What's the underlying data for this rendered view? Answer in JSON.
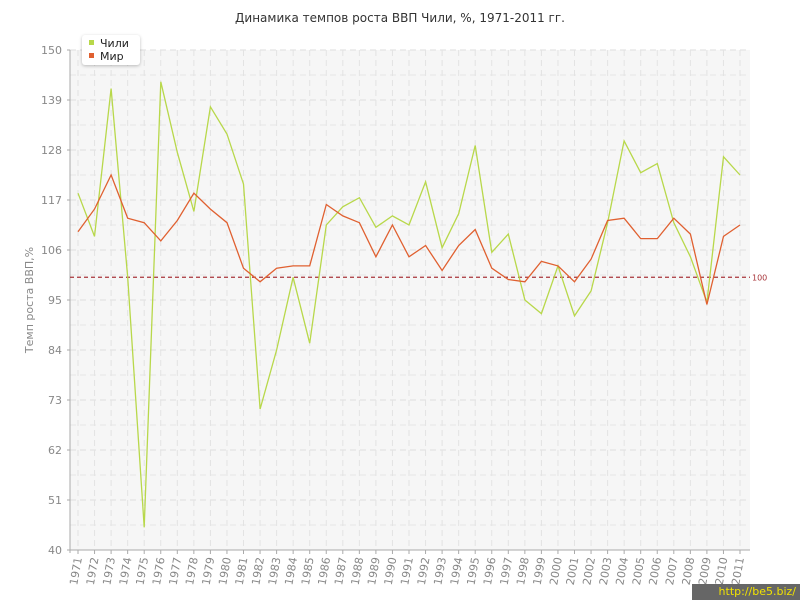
{
  "chart_data": {
    "type": "line",
    "title": "Динамика темпов роста ВВП Чили, %, 1971-2011 гг.",
    "xlabel": "",
    "ylabel": "Темп роста ВВП,%",
    "ylim": [
      40,
      150
    ],
    "yticks": [
      40,
      51,
      62,
      73,
      84,
      95,
      106,
      117,
      128,
      139,
      150
    ],
    "grid": true,
    "legend_position": "top-left",
    "reference_line": {
      "value": 100,
      "label": "100",
      "color": "#a8353a"
    },
    "x": [
      "1971",
      "1972",
      "1973",
      "1974",
      "1975",
      "1976",
      "1977",
      "1978",
      "1979",
      "1980",
      "1981",
      "1982",
      "1983",
      "1984",
      "1985",
      "1986",
      "1987",
      "1988",
      "1989",
      "1990",
      "1991",
      "1992",
      "1993",
      "1994",
      "1995",
      "1996",
      "1997",
      "1998",
      "1999",
      "2000",
      "2001",
      "2002",
      "2003",
      "2004",
      "2005",
      "2006",
      "2007",
      "2008",
      "2009",
      "2010",
      "2011"
    ],
    "series": [
      {
        "name": "Чили",
        "color": "#b8d84a",
        "values": [
          118.5,
          109.0,
          141.5,
          100.0,
          45.0,
          143.0,
          127.5,
          114.5,
          137.5,
          131.5,
          120.5,
          71.0,
          84.0,
          100.0,
          85.5,
          111.5,
          115.5,
          117.5,
          111.0,
          113.5,
          111.5,
          121.0,
          106.5,
          114.0,
          129.0,
          105.5,
          109.5,
          95.0,
          92.0,
          102.5,
          91.5,
          97.0,
          112.0,
          130.0,
          123.0,
          125.0,
          112.0,
          104.5,
          94.5,
          126.5,
          122.5
        ]
      },
      {
        "name": "Мир",
        "color": "#e06030",
        "values": [
          110.0,
          115.0,
          122.5,
          113.0,
          112.0,
          108.0,
          112.5,
          118.5,
          115.0,
          112.0,
          102.0,
          99.0,
          102.0,
          102.5,
          102.5,
          116.0,
          113.5,
          112.0,
          104.5,
          111.5,
          104.5,
          107.0,
          101.5,
          107.0,
          110.5,
          102.0,
          99.5,
          99.0,
          103.5,
          102.5,
          99.0,
          104.0,
          112.5,
          113.0,
          108.5,
          108.5,
          113.0,
          109.5,
          94.0,
          109.0,
          111.5
        ]
      }
    ]
  },
  "watermark": "http://be5.biz/"
}
